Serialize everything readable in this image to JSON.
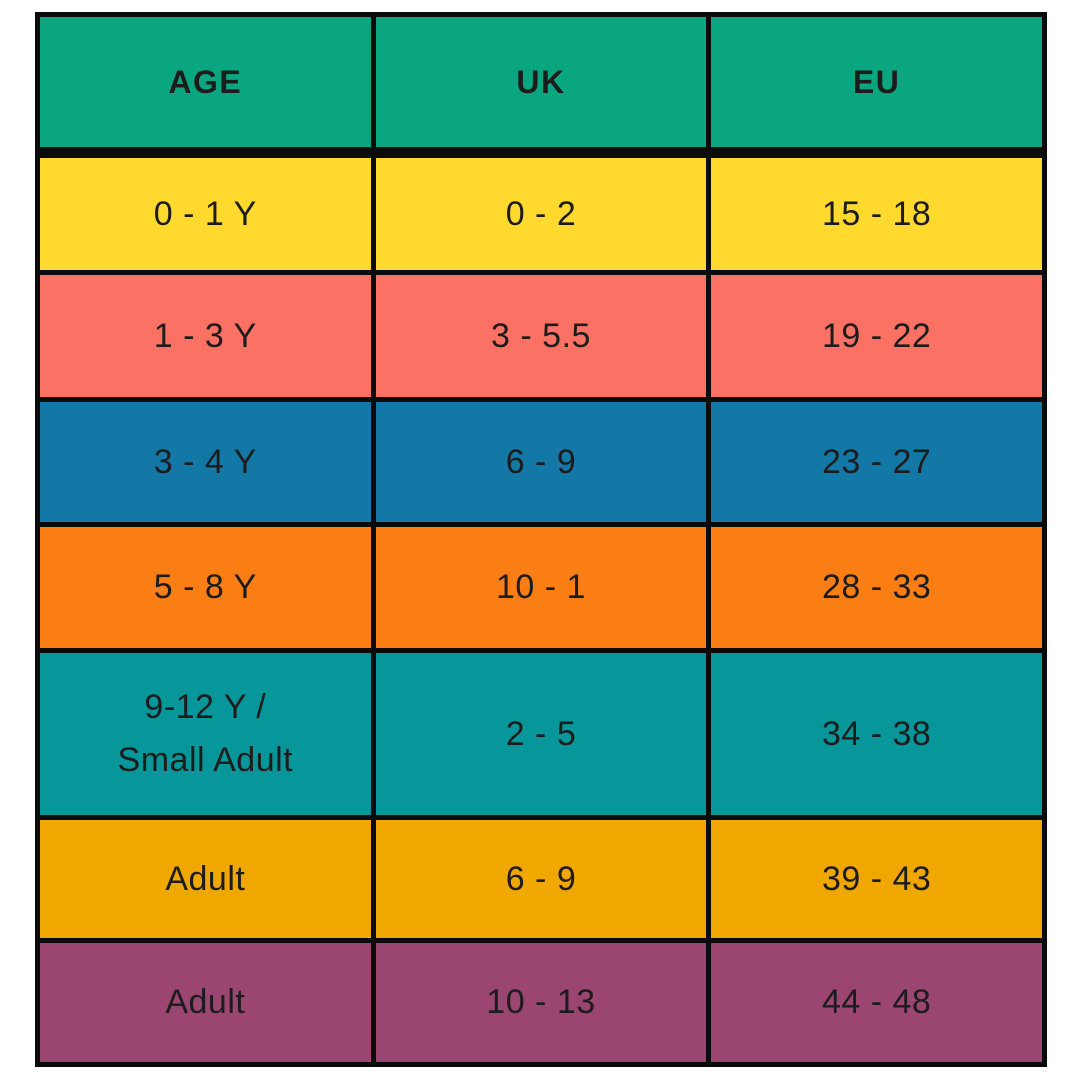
{
  "chart_data": {
    "type": "table",
    "columns": [
      "AGE",
      "UK",
      "EU"
    ],
    "rows": [
      {
        "cells": [
          "0 - 1 Y",
          "0 - 2",
          "15 - 18"
        ],
        "row_color": "#FFD92E"
      },
      {
        "cells": [
          "1 - 3 Y",
          "3 - 5.5",
          "19 - 22"
        ],
        "row_color": "#FB7265"
      },
      {
        "cells": [
          "3 - 4 Y",
          "6 - 9",
          "23 - 27"
        ],
        "row_color": "#1478A7"
      },
      {
        "cells": [
          "5 - 8 Y",
          "10 - 1",
          "28 - 33"
        ],
        "row_color": "#FB7E14"
      },
      {
        "cells": [
          "9-12 Y /\nSmall Adult",
          "2 - 5",
          "34 - 38"
        ],
        "row_color": "#079699"
      },
      {
        "cells": [
          "Adult",
          "6 - 9",
          "39 - 43"
        ],
        "row_color": "#F0A800"
      },
      {
        "cells": [
          "Adult",
          "10 - 13",
          "44 - 48"
        ],
        "row_color": "#9B4571"
      }
    ],
    "header_color": "#0AA67F",
    "border_color": "#0B0B0B",
    "text_color": "#1C1C1C",
    "layout_hints": {
      "grid": "on",
      "header_bottom_border": "thick"
    }
  }
}
